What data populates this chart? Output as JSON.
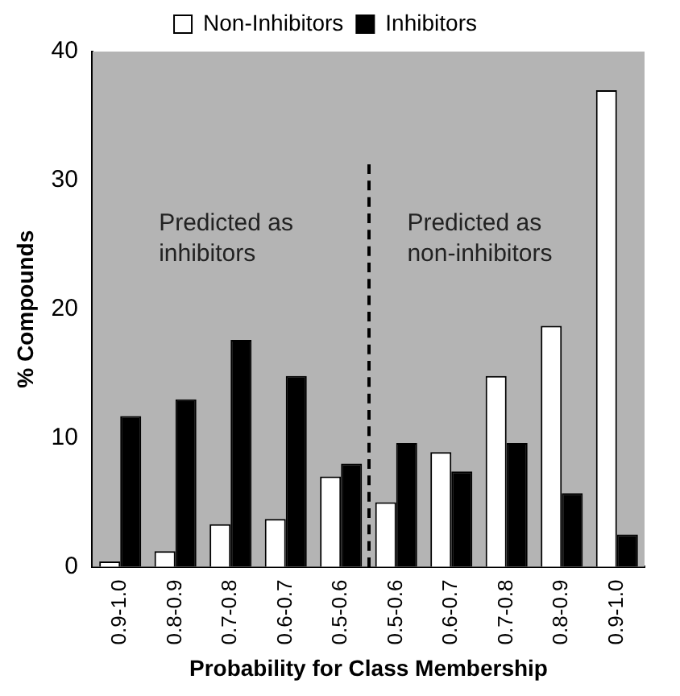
{
  "chart_data": {
    "type": "bar",
    "xlabel": "Probability for Class Membership",
    "ylabel": "% Compounds",
    "categories": [
      "0.9-1.0",
      "0.8-0.9",
      "0.7-0.8",
      "0.6-0.7",
      "0.5-0.6",
      "0.5-0.6",
      "0.6-0.7",
      "0.7-0.8",
      "0.8-0.9",
      "0.9-1.0"
    ],
    "series": [
      {
        "name": "Non-Inhibitors",
        "color": "#ffffff",
        "values": [
          0.4,
          1.2,
          3.3,
          3.7,
          7.0,
          5.0,
          8.9,
          14.8,
          18.7,
          37.0
        ]
      },
      {
        "name": "Inhibitors",
        "color": "#000000",
        "values": [
          11.7,
          13.0,
          17.6,
          14.8,
          8.0,
          9.6,
          7.4,
          9.6,
          5.7,
          2.5
        ]
      }
    ],
    "ylim": [
      0,
      40
    ],
    "yticks": [
      0,
      10,
      20,
      30,
      40
    ],
    "grid": false,
    "legend": "top",
    "annotations": [
      "Predicted as\ninhibitors",
      "Predicted as\nnon-inhibitors"
    ]
  }
}
